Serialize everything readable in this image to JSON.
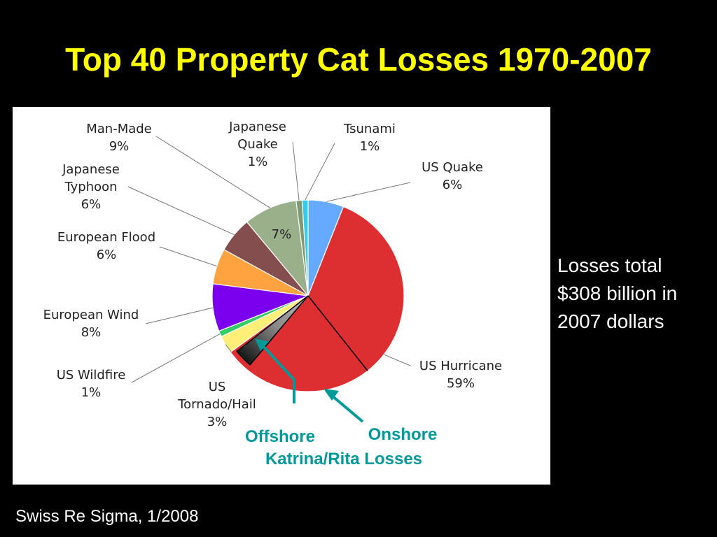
{
  "slide": {
    "title": "Top 40 Property Cat Losses 1970-2007",
    "side_note": [
      "Losses total",
      "$308 billion in",
      "2007 dollars"
    ],
    "source": "Swiss Re Sigma, 1/2008"
  },
  "colors": {
    "title": "#ffff00",
    "annotation": "#009999",
    "leader": "#777777"
  },
  "chart_data": {
    "type": "pie",
    "title": "",
    "start": "12 o'clock, clockwise",
    "slices": [
      {
        "name": "US Quake",
        "value": 6,
        "color": "#66aaff",
        "label": [
          "US Quake",
          "6%"
        ]
      },
      {
        "name": "US Hurricane",
        "value": 59,
        "color": "#dd2e32",
        "label": [
          "US Hurricane",
          "59%"
        ]
      },
      {
        "name": "US Tornado/Hail",
        "value": 3,
        "color": "#ffee77",
        "label": [
          "US",
          "Tornado/Hail",
          "3%"
        ]
      },
      {
        "name": "US Wildfire",
        "value": 1,
        "color": "#33cc66",
        "label": [
          "US Wildfire",
          "1%"
        ]
      },
      {
        "name": "European Wind",
        "value": 8,
        "color": "#7a00ee",
        "label": [
          "European Wind",
          "8%"
        ]
      },
      {
        "name": "European Flood",
        "value": 6,
        "color": "#ffa340",
        "label": [
          "European Flood",
          "6%"
        ]
      },
      {
        "name": "Japanese Typhoon",
        "value": 6,
        "color": "#844e4e",
        "label": [
          "Japanese",
          "Typhoon",
          "6%"
        ]
      },
      {
        "name": "Man-Made",
        "value": 9,
        "color": "#99b08a",
        "label": [
          "Man-Made",
          "9%"
        ]
      },
      {
        "name": "Japanese Quake",
        "value": 1,
        "color": "#7f9a70",
        "label": [
          "Japanese",
          "Quake",
          "1%"
        ]
      },
      {
        "name": "Tsunami",
        "value": 1,
        "color": "#33ccee",
        "label": [
          "Tsunami",
          "1%"
        ]
      }
    ],
    "inner_label": "7%",
    "hurricane_split": [
      {
        "name": "Onshore Katrina/Rita Losses",
        "color": "#dd2e32"
      },
      {
        "name": "Offshore Katrina/Rita Losses",
        "color": "#888888"
      }
    ],
    "annotations": {
      "offshore": "Offshore",
      "onshore": "Onshore",
      "katrina_rita": "Katrina/Rita Losses"
    }
  }
}
